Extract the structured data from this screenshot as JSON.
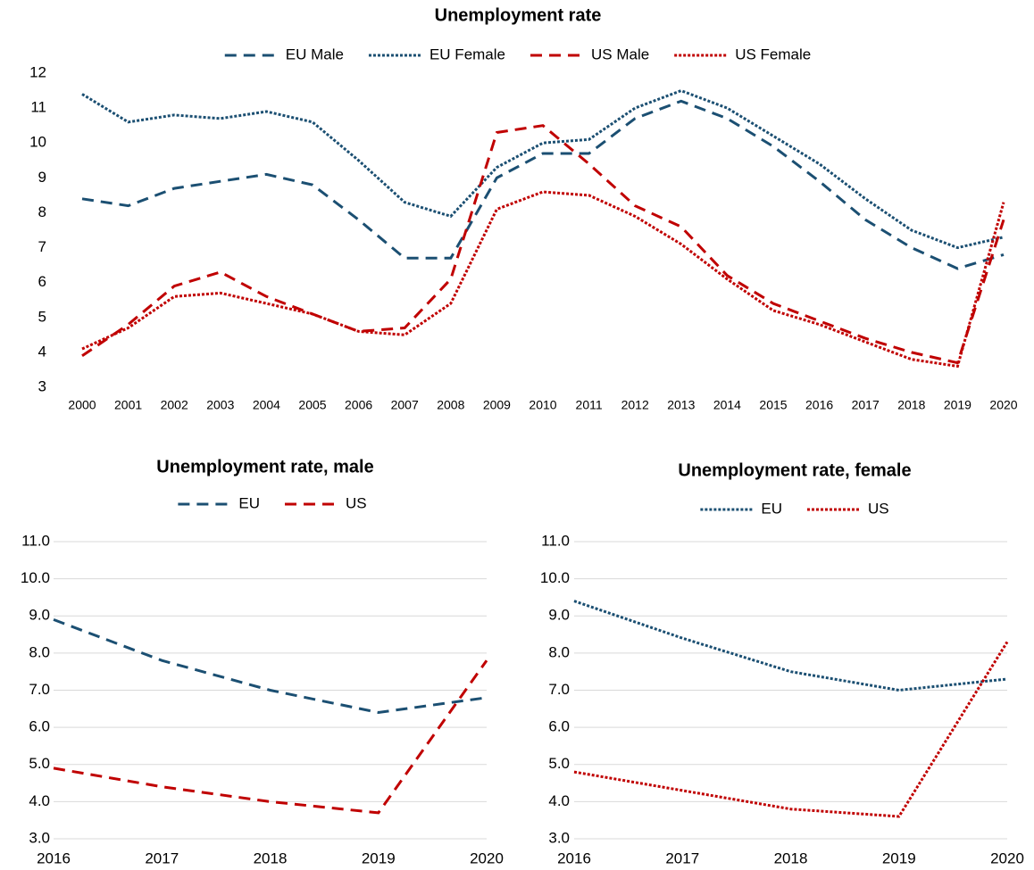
{
  "chart_data": [
    {
      "type": "line",
      "title": "Unemployment rate",
      "categories": [
        "2000",
        "2001",
        "2002",
        "2003",
        "2004",
        "2005",
        "2006",
        "2007",
        "2008",
        "2009",
        "2010",
        "2011",
        "2012",
        "2013",
        "2014",
        "2015",
        "2016",
        "2017",
        "2018",
        "2019",
        "2020"
      ],
      "series": [
        {
          "name": "EU Male",
          "color": "#1b4f72",
          "style": "dash",
          "values": [
            8.4,
            8.2,
            8.7,
            8.9,
            9.1,
            8.8,
            7.8,
            6.7,
            6.7,
            9.0,
            9.7,
            9.7,
            10.7,
            11.2,
            10.7,
            9.9,
            8.9,
            7.8,
            7.0,
            6.4,
            6.8
          ]
        },
        {
          "name": "EU Female",
          "color": "#1b4f72",
          "style": "dot",
          "values": [
            11.4,
            10.6,
            10.8,
            10.7,
            10.9,
            10.6,
            9.5,
            8.3,
            7.9,
            9.3,
            10.0,
            10.1,
            11.0,
            11.5,
            11.0,
            10.2,
            9.4,
            8.4,
            7.5,
            7.0,
            7.3
          ]
        },
        {
          "name": "US Male",
          "color": "#c00000",
          "style": "dash",
          "values": [
            3.9,
            4.8,
            5.9,
            6.3,
            5.6,
            5.1,
            4.6,
            4.7,
            6.1,
            10.3,
            10.5,
            9.4,
            8.2,
            7.6,
            6.2,
            5.4,
            4.9,
            4.4,
            4.0,
            3.7,
            7.8
          ]
        },
        {
          "name": "US Female",
          "color": "#c00000",
          "style": "dot",
          "values": [
            4.1,
            4.7,
            5.6,
            5.7,
            5.4,
            5.1,
            4.6,
            4.5,
            5.4,
            8.1,
            8.6,
            8.5,
            7.9,
            7.1,
            6.1,
            5.2,
            4.8,
            4.3,
            3.8,
            3.6,
            8.3
          ]
        }
      ],
      "ylim": [
        3,
        12
      ],
      "yticks": [
        3,
        4,
        5,
        6,
        7,
        8,
        9,
        10,
        11,
        12
      ],
      "grid": false,
      "legend": "top"
    },
    {
      "type": "line",
      "title": "Unemployment rate, male",
      "categories": [
        "2016",
        "2017",
        "2018",
        "2019",
        "2020"
      ],
      "series": [
        {
          "name": "EU",
          "color": "#1b4f72",
          "style": "dash",
          "values": [
            8.9,
            7.8,
            7.0,
            6.4,
            6.8
          ]
        },
        {
          "name": "US",
          "color": "#c00000",
          "style": "dash",
          "values": [
            4.9,
            4.4,
            4.0,
            3.7,
            7.8
          ]
        }
      ],
      "ylim": [
        3,
        11
      ],
      "yticks": [
        {
          "value": 3,
          "label": "3.0"
        },
        {
          "value": 4,
          "label": "4.0"
        },
        {
          "value": 5,
          "label": "5.0"
        },
        {
          "value": 6,
          "label": "6.0"
        },
        {
          "value": 7,
          "label": "7.0"
        },
        {
          "value": 8,
          "label": "8.0"
        },
        {
          "value": 9,
          "label": "9.0"
        },
        {
          "value": 10,
          "label": "10.0"
        },
        {
          "value": 11,
          "label": "11.0"
        }
      ],
      "grid": true,
      "legend": "top"
    },
    {
      "type": "line",
      "title": "Unemployment rate, female",
      "categories": [
        "2016",
        "2017",
        "2018",
        "2019",
        "2020"
      ],
      "series": [
        {
          "name": "EU",
          "color": "#1b4f72",
          "style": "dot",
          "values": [
            9.4,
            8.4,
            7.5,
            7.0,
            7.3
          ]
        },
        {
          "name": "US",
          "color": "#c00000",
          "style": "dot",
          "values": [
            4.8,
            4.3,
            3.8,
            3.6,
            8.3
          ]
        }
      ],
      "ylim": [
        3,
        11
      ],
      "yticks": [
        {
          "value": 3,
          "label": "3.0"
        },
        {
          "value": 4,
          "label": "4.0"
        },
        {
          "value": 5,
          "label": "5.0"
        },
        {
          "value": 6,
          "label": "6.0"
        },
        {
          "value": 7,
          "label": "7.0"
        },
        {
          "value": 8,
          "label": "8.0"
        },
        {
          "value": 9,
          "label": "9.0"
        },
        {
          "value": 10,
          "label": "10.0"
        },
        {
          "value": 11,
          "label": "11.0"
        }
      ],
      "grid": true,
      "legend": "top"
    }
  ]
}
